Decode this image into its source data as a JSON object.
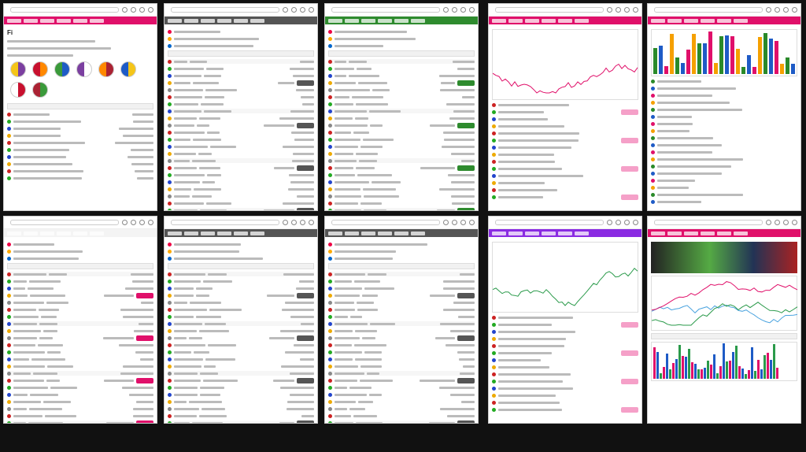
{
  "panels": [
    {
      "logo": "",
      "accent": "#e0106a",
      "title": "Fi",
      "kind": "flags"
    },
    {
      "logo": "",
      "accent": "#555555",
      "title": "",
      "kind": "table"
    },
    {
      "logo": "",
      "accent": "#2e8b2e",
      "title": "",
      "kind": "list"
    },
    {
      "logo": "",
      "accent": "#e0106a",
      "title": "",
      "kind": "linechart"
    },
    {
      "logo": "",
      "accent": "#e0106a",
      "title": "",
      "kind": "barchart"
    },
    {
      "logo": "",
      "accent": "#ffffff",
      "title": "",
      "kind": "table"
    },
    {
      "logo": "",
      "accent": "#555555",
      "title": "",
      "kind": "table"
    },
    {
      "logo": "",
      "accent": "#555555",
      "title": "",
      "kind": "list"
    },
    {
      "logo": "",
      "accent": "#8a2be2",
      "title": "",
      "kind": "linechart"
    },
    {
      "logo": "",
      "accent": "#e0106a",
      "title": "",
      "kind": "hero"
    }
  ]
}
